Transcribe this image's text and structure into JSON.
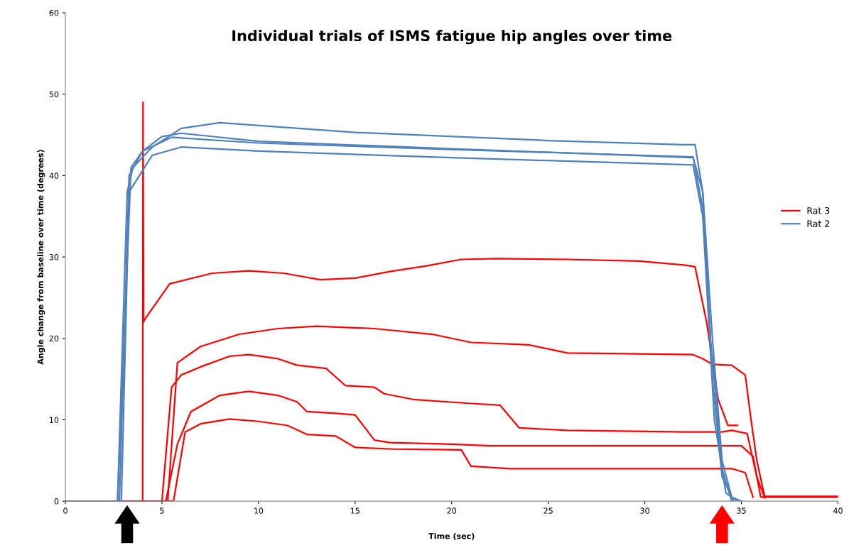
{
  "chart_data": {
    "type": "line",
    "title": "Individual trials of ISMS fatigue hip angles over time",
    "xlabel": "Time (sec)",
    "ylabel": "Angle change from baseline over time (degrees)",
    "xlim": [
      0,
      40
    ],
    "xticks": [
      0,
      5,
      10,
      15,
      20,
      25,
      30,
      35,
      40
    ],
    "ylim": [
      0,
      60
    ],
    "yticks": [
      0,
      10,
      20,
      30,
      40,
      50,
      60
    ],
    "grid": false,
    "legend": "right",
    "marker": "none",
    "line_style": "solid",
    "series": [
      {
        "name": "Rat 3",
        "color": "#ff0000",
        "x": [
          0,
          4.0,
          4.02,
          4.05,
          4.1,
          5.4,
          7.6,
          9.5,
          11.3,
          13.2,
          15,
          16.8,
          18.7,
          20.5,
          22.4,
          26,
          29.7,
          32.1,
          32.6,
          33.2,
          33.8,
          34.3,
          34.8
        ],
        "values": [
          0,
          0,
          49,
          22,
          22.3,
          26.7,
          28,
          28.3,
          28,
          27.2,
          27.4,
          28.2,
          28.9,
          29.7,
          29.8,
          29.7,
          29.5,
          29,
          28.8,
          22,
          12.5,
          9.3,
          9.3
        ]
      },
      {
        "color": "#ff0000",
        "x": [
          0,
          5.3,
          5.8,
          7,
          9,
          11,
          13,
          16,
          19,
          21,
          24,
          26,
          32.5,
          33,
          33.5,
          34.5,
          35.2,
          35.5,
          35.8,
          36.2,
          40
        ],
        "values": [
          0,
          0,
          17,
          19,
          20.5,
          21.2,
          21.5,
          21.2,
          20.5,
          19.5,
          19.2,
          18.2,
          18,
          17.5,
          16.8,
          16.7,
          15.5,
          10,
          5,
          0.6,
          0.6
        ]
      },
      {
        "color": "#ff0000",
        "x": [
          0,
          5.0,
          5.5,
          6,
          7,
          8.5,
          9.5,
          11,
          12,
          13.5,
          14.5,
          16,
          16.5,
          18,
          21,
          22.5,
          23.5,
          26,
          32,
          34,
          34.5,
          35.3,
          35.8,
          36.2
        ],
        "values": [
          0,
          0,
          14,
          15.5,
          16.5,
          17.8,
          18,
          17.5,
          16.7,
          16.3,
          14.2,
          14,
          13.2,
          12.5,
          12,
          11.8,
          9,
          8.7,
          8.5,
          8.5,
          8.7,
          8.3,
          3,
          0.4
        ]
      },
      {
        "color": "#ff0000",
        "x": [
          0,
          5.2,
          5.8,
          6.5,
          8,
          9.5,
          11,
          12,
          12.5,
          14,
          15,
          16,
          16.8,
          20,
          22,
          32,
          35,
          35.6,
          36,
          40
        ],
        "values": [
          0,
          0,
          7,
          11,
          13,
          13.5,
          13,
          12.2,
          11,
          10.8,
          10.6,
          7.5,
          7.2,
          7,
          6.8,
          6.8,
          6.8,
          5.5,
          0.5,
          0.5
        ]
      },
      {
        "color": "#ff0000",
        "x": [
          0,
          5.6,
          6.2,
          7,
          8.5,
          10,
          11.5,
          12.5,
          14,
          15,
          17,
          20.5,
          21,
          23,
          32,
          34.5,
          35.2,
          35.6
        ],
        "values": [
          0,
          0,
          8.5,
          9.5,
          10.1,
          9.8,
          9.3,
          8.2,
          8,
          6.6,
          6.4,
          6.3,
          4.3,
          4,
          4,
          4,
          3.5,
          0.5
        ]
      },
      {
        "name": "Rat 2",
        "color": "#4f81bd",
        "x": [
          0,
          2.7,
          3.2,
          3.5,
          4.5,
          6,
          8,
          15,
          25,
          32,
          32.6,
          33,
          33.5,
          34,
          34.5,
          35
        ],
        "values": [
          0,
          0,
          38,
          41,
          43.5,
          45.8,
          46.5,
          45.3,
          44.3,
          43.8,
          43.8,
          38,
          20,
          5,
          0.5,
          0
        ]
      },
      {
        "color": "#4f81bd",
        "x": [
          0,
          2.8,
          3.3,
          4,
          5,
          6,
          10,
          20,
          32.5,
          33,
          33.5,
          34,
          34.6
        ],
        "values": [
          0,
          0,
          40,
          43,
          44.8,
          45.2,
          44.2,
          43.3,
          42.2,
          38,
          15,
          3,
          0
        ]
      },
      {
        "color": "#4f81bd",
        "x": [
          0,
          2.7,
          3.4,
          4,
          5.5,
          10,
          20,
          32.5,
          33,
          33.4,
          34,
          34.5
        ],
        "values": [
          0,
          0,
          41,
          43,
          44.7,
          44,
          43.2,
          42.3,
          36,
          20,
          4,
          0
        ]
      },
      {
        "color": "#4f81bd",
        "x": [
          0,
          2.9,
          3.3,
          4.5,
          6,
          10,
          20,
          32.5,
          33,
          33.6,
          34.2,
          34.8
        ],
        "values": [
          0,
          0,
          38,
          42.5,
          43.5,
          43,
          42.2,
          41.3,
          35,
          10,
          1,
          0
        ]
      }
    ]
  }
}
